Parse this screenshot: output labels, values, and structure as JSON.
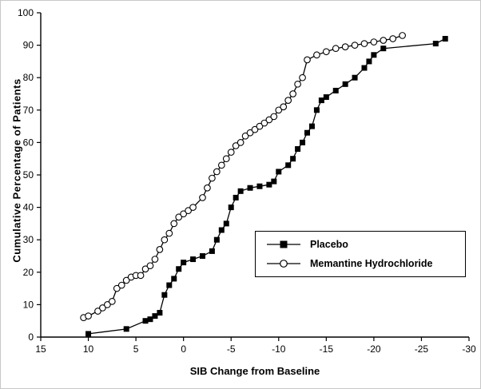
{
  "legend": {
    "items": [
      {
        "label": "Placebo",
        "marker": "filled-square"
      },
      {
        "label": "Memantine Hydrochloride",
        "marker": "open-circle"
      }
    ]
  },
  "chart_data": {
    "type": "line",
    "title": "",
    "xlabel": "SIB Change from Baseline",
    "ylabel": "Cumulative Percentage of Patients",
    "xlim": [
      15,
      -30
    ],
    "ylim": [
      0,
      100
    ],
    "x_axis_reversed": true,
    "grid": false,
    "legend_position": "lower-right-box",
    "xticks": [
      15,
      10,
      5,
      0,
      -5,
      -10,
      -15,
      -20,
      -25,
      -30
    ],
    "yticks": [
      0,
      10,
      20,
      30,
      40,
      50,
      60,
      70,
      80,
      90,
      100
    ],
    "series": [
      {
        "name": "Placebo",
        "marker": "filled-square",
        "points": [
          [
            10,
            1
          ],
          [
            6,
            2.5
          ],
          [
            4,
            5
          ],
          [
            3.5,
            5.5
          ],
          [
            3,
            6.5
          ],
          [
            2.5,
            7.5
          ],
          [
            2,
            13
          ],
          [
            1.5,
            16
          ],
          [
            1,
            18
          ],
          [
            0.5,
            21
          ],
          [
            0,
            23
          ],
          [
            -1,
            24
          ],
          [
            -2,
            25
          ],
          [
            -3,
            26.5
          ],
          [
            -3.5,
            30
          ],
          [
            -4,
            33
          ],
          [
            -4.5,
            35
          ],
          [
            -5,
            40
          ],
          [
            -5.5,
            43
          ],
          [
            -6,
            45
          ],
          [
            -7,
            46
          ],
          [
            -8,
            46.5
          ],
          [
            -9,
            47
          ],
          [
            -9.5,
            48
          ],
          [
            -10,
            51
          ],
          [
            -11,
            53
          ],
          [
            -11.5,
            55
          ],
          [
            -12,
            58
          ],
          [
            -12.5,
            60
          ],
          [
            -13,
            63
          ],
          [
            -13.5,
            65
          ],
          [
            -14,
            70
          ],
          [
            -14.5,
            73
          ],
          [
            -15,
            74
          ],
          [
            -16,
            76
          ],
          [
            -17,
            78
          ],
          [
            -18,
            80
          ],
          [
            -19,
            83
          ],
          [
            -19.5,
            85
          ],
          [
            -20,
            87
          ],
          [
            -21,
            89
          ],
          [
            -26.5,
            90.5
          ],
          [
            -27.5,
            92
          ]
        ]
      },
      {
        "name": "Memantine Hydrochloride",
        "marker": "open-circle",
        "points": [
          [
            10.5,
            6
          ],
          [
            10,
            6.5
          ],
          [
            9,
            8
          ],
          [
            8.5,
            9
          ],
          [
            8,
            10
          ],
          [
            7.5,
            11
          ],
          [
            7,
            15
          ],
          [
            6.5,
            16
          ],
          [
            6,
            17.5
          ],
          [
            5.5,
            18.5
          ],
          [
            5,
            19
          ],
          [
            4.5,
            19
          ],
          [
            4,
            21
          ],
          [
            3.5,
            22
          ],
          [
            3,
            24
          ],
          [
            2.5,
            27
          ],
          [
            2,
            30
          ],
          [
            1.5,
            32
          ],
          [
            1,
            35
          ],
          [
            0.5,
            37
          ],
          [
            0,
            38
          ],
          [
            -0.5,
            39
          ],
          [
            -1,
            40
          ],
          [
            -2,
            43
          ],
          [
            -2.5,
            46
          ],
          [
            -3,
            49
          ],
          [
            -3.5,
            51
          ],
          [
            -4,
            53
          ],
          [
            -4.5,
            55
          ],
          [
            -5,
            57
          ],
          [
            -5.5,
            59
          ],
          [
            -6,
            60
          ],
          [
            -6.5,
            62
          ],
          [
            -7,
            63
          ],
          [
            -7.5,
            64
          ],
          [
            -8,
            65
          ],
          [
            -8.5,
            66
          ],
          [
            -9,
            67
          ],
          [
            -9.5,
            68
          ],
          [
            -10,
            70
          ],
          [
            -10.5,
            71
          ],
          [
            -11,
            73
          ],
          [
            -11.5,
            75
          ],
          [
            -12,
            78
          ],
          [
            -12.5,
            80
          ],
          [
            -13,
            85.5
          ],
          [
            -14,
            87
          ],
          [
            -15,
            88
          ],
          [
            -16,
            89
          ],
          [
            -17,
            89.5
          ],
          [
            -18,
            90
          ],
          [
            -19,
            90.5
          ],
          [
            -20,
            91
          ],
          [
            -21,
            91.5
          ],
          [
            -22,
            92
          ],
          [
            -23,
            93
          ]
        ]
      }
    ]
  }
}
